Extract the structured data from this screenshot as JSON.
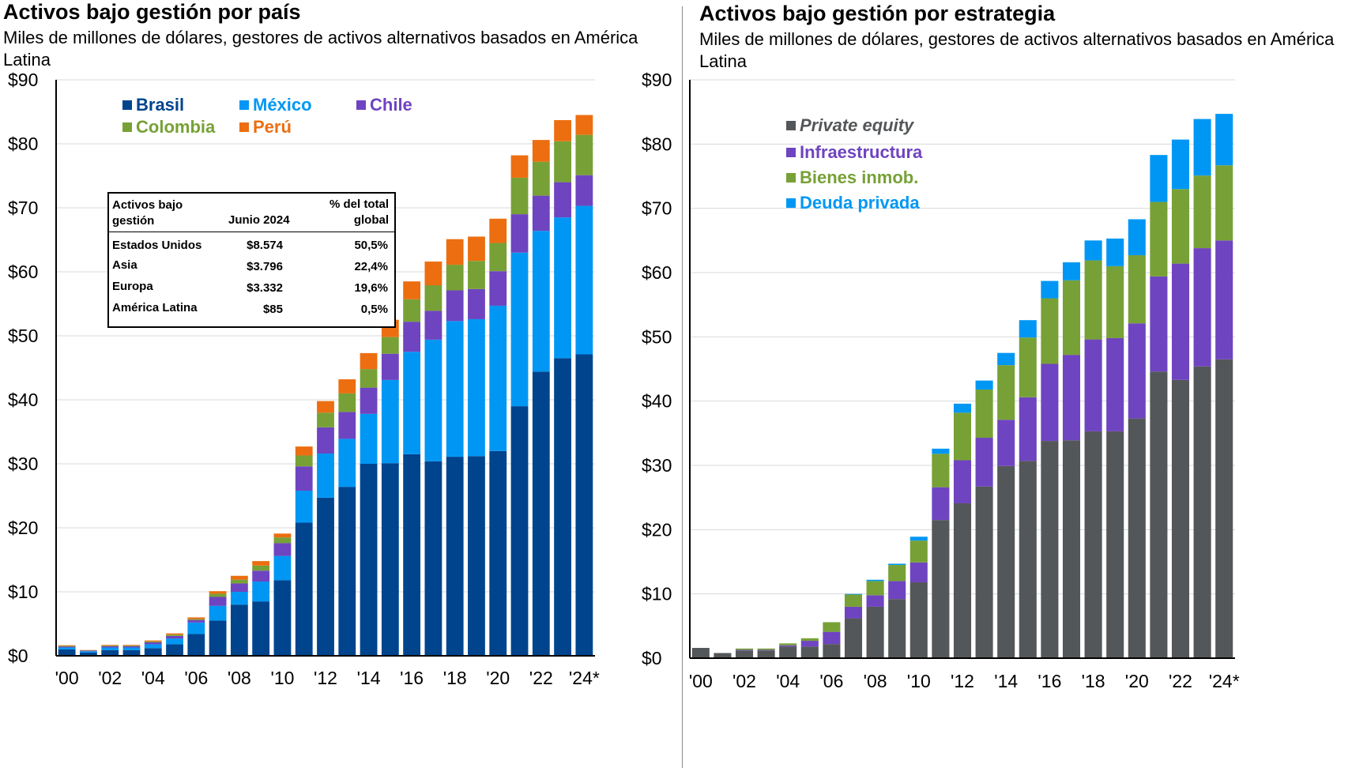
{
  "left": {
    "title": "Activos bajo gestión por país",
    "subtitle": "Miles de millones de dólares, gestores de activos alternativos basados en América Latina",
    "table": {
      "header": {
        "col1": "Activos bajo gestión",
        "col2": "Junio  2024",
        "col3": "% del total global"
      },
      "rows": [
        {
          "region": "Estados Unidos",
          "value": "$8.574",
          "pct": "50,5%"
        },
        {
          "region": "Asia",
          "value": "$3.796",
          "pct": "22,4%"
        },
        {
          "region": "Europa",
          "value": "$3.332",
          "pct": "19,6%"
        },
        {
          "region": "América Latina",
          "value": "$85",
          "pct": "0,5%"
        }
      ]
    }
  },
  "right": {
    "title": "Activos bajo gestión por estrategia",
    "subtitle": "Miles de millones de dólares, gestores de activos alternativos basados en América Latina"
  },
  "chart_data": [
    {
      "type": "bar",
      "stacked": true,
      "title": "Activos bajo gestión por país",
      "ylim": [
        0,
        90
      ],
      "y_ticks": [
        "$0",
        "$10",
        "$20",
        "$30",
        "$40",
        "$50",
        "$60",
        "$70",
        "$80",
        "$90"
      ],
      "x_tick_labels": [
        "'00",
        "'02",
        "'04",
        "'06",
        "'08",
        "'10",
        "'12",
        "'14",
        "'16",
        "'18",
        "'20",
        "'22",
        "'24*"
      ],
      "legend_position": "top-left",
      "categories": [
        "2000",
        "2001",
        "2002",
        "2003",
        "2004",
        "2005",
        "2006",
        "2007",
        "2008",
        "2009",
        "2010",
        "2011",
        "2012",
        "2013",
        "2014",
        "2015",
        "2016",
        "2017",
        "2018",
        "2019",
        "2020",
        "2021",
        "2022",
        "2023",
        "2024*"
      ],
      "series": [
        {
          "name": "Brasil",
          "color": "#00448e",
          "values": [
            1.0,
            0.5,
            0.9,
            0.9,
            1.2,
            1.8,
            3.4,
            5.5,
            8.0,
            8.5,
            11.8,
            20.8,
            24.7,
            26.4,
            30.0,
            30.1,
            31.5,
            30.4,
            31.1,
            31.2,
            32.0,
            39.0,
            44.4,
            46.5,
            47.1
          ]
        },
        {
          "name": "México",
          "color": "#0097f4",
          "values": [
            0.3,
            0.2,
            0.4,
            0.4,
            0.6,
            0.9,
            1.8,
            2.3,
            2.0,
            3.1,
            3.8,
            5.0,
            6.9,
            7.5,
            7.8,
            13.0,
            16.0,
            19.0,
            21.2,
            21.4,
            22.7,
            24.0,
            22.0,
            22.0,
            23.2
          ]
        },
        {
          "name": "Chile",
          "color": "#6f44c0",
          "values": [
            0.15,
            0.1,
            0.2,
            0.2,
            0.3,
            0.4,
            0.4,
            1.4,
            1.3,
            1.7,
            2.0,
            3.8,
            4.1,
            4.2,
            4.1,
            4.1,
            4.7,
            4.5,
            4.8,
            4.7,
            5.4,
            6.0,
            5.5,
            5.5,
            4.8
          ]
        },
        {
          "name": "Colombia",
          "color": "#77a136",
          "values": [
            0.1,
            0.05,
            0.1,
            0.1,
            0.15,
            0.2,
            0.15,
            0.5,
            0.6,
            0.8,
            0.9,
            1.7,
            2.3,
            2.9,
            2.9,
            2.6,
            3.5,
            4.0,
            4.0,
            4.4,
            4.4,
            5.7,
            5.3,
            6.4,
            6.3
          ]
        },
        {
          "name": "Perú",
          "color": "#ec6e10",
          "values": [
            0.1,
            0.05,
            0.1,
            0.1,
            0.15,
            0.2,
            0.25,
            0.4,
            0.6,
            0.7,
            0.6,
            1.4,
            1.8,
            2.2,
            2.5,
            2.7,
            2.8,
            3.7,
            4.0,
            3.8,
            3.8,
            3.5,
            3.4,
            3.3,
            3.1
          ]
        }
      ]
    },
    {
      "type": "bar",
      "stacked": true,
      "title": "Activos bajo gestión por estrategia",
      "ylim": [
        0,
        90
      ],
      "y_ticks": [
        "$0",
        "$10",
        "$20",
        "$30",
        "$40",
        "$50",
        "$60",
        "$70",
        "$80",
        "$90"
      ],
      "x_tick_labels": [
        "'00",
        "'02",
        "'04",
        "'06",
        "'08",
        "'10",
        "'12",
        "'14",
        "'16",
        "'18",
        "'20",
        "'22",
        "'24*"
      ],
      "legend_position": "top-left",
      "categories": [
        "2000",
        "2001",
        "2002",
        "2003",
        "2004",
        "2005",
        "2006",
        "2007",
        "2008",
        "2009",
        "2010",
        "2011",
        "2012",
        "2013",
        "2014",
        "2015",
        "2016",
        "2017",
        "2018",
        "2019",
        "2020",
        "2021",
        "2022",
        "2023",
        "2024*"
      ],
      "series": [
        {
          "name": "Private equity",
          "color": "#545759",
          "italic": true,
          "values": [
            1.6,
            0.8,
            1.2,
            1.2,
            1.8,
            1.8,
            2.2,
            6.2,
            8.0,
            9.2,
            11.8,
            21.5,
            24.1,
            26.7,
            29.9,
            30.7,
            33.8,
            33.9,
            35.3,
            35.3,
            37.3,
            44.6,
            43.3,
            45.4,
            46.5
          ]
        },
        {
          "name": "Infraestructura",
          "color": "#6f44c0",
          "values": [
            0,
            0,
            0.1,
            0.1,
            0.2,
            0.9,
            1.9,
            1.8,
            1.8,
            2.8,
            3.1,
            5.1,
            6.7,
            7.6,
            7.2,
            9.9,
            12.0,
            13.3,
            14.3,
            14.5,
            14.8,
            14.8,
            18.1,
            18.4,
            18.5
          ]
        },
        {
          "name": "Bienes inmob.",
          "color": "#77a136",
          "values": [
            0,
            0,
            0.2,
            0.2,
            0.3,
            0.4,
            1.5,
            1.9,
            2.2,
            2.5,
            3.4,
            5.2,
            7.4,
            7.5,
            8.5,
            9.3,
            10.2,
            11.6,
            12.3,
            11.2,
            10.6,
            11.6,
            11.6,
            11.3,
            11.7
          ]
        },
        {
          "name": "Deuda privada",
          "color": "#0097f4",
          "values": [
            0,
            0,
            0,
            0,
            0,
            0,
            0,
            0.1,
            0.2,
            0.2,
            0.6,
            0.8,
            1.4,
            1.4,
            1.9,
            2.7,
            2.7,
            2.8,
            3.1,
            4.3,
            5.6,
            7.3,
            7.7,
            8.8,
            8.0
          ]
        }
      ]
    }
  ]
}
